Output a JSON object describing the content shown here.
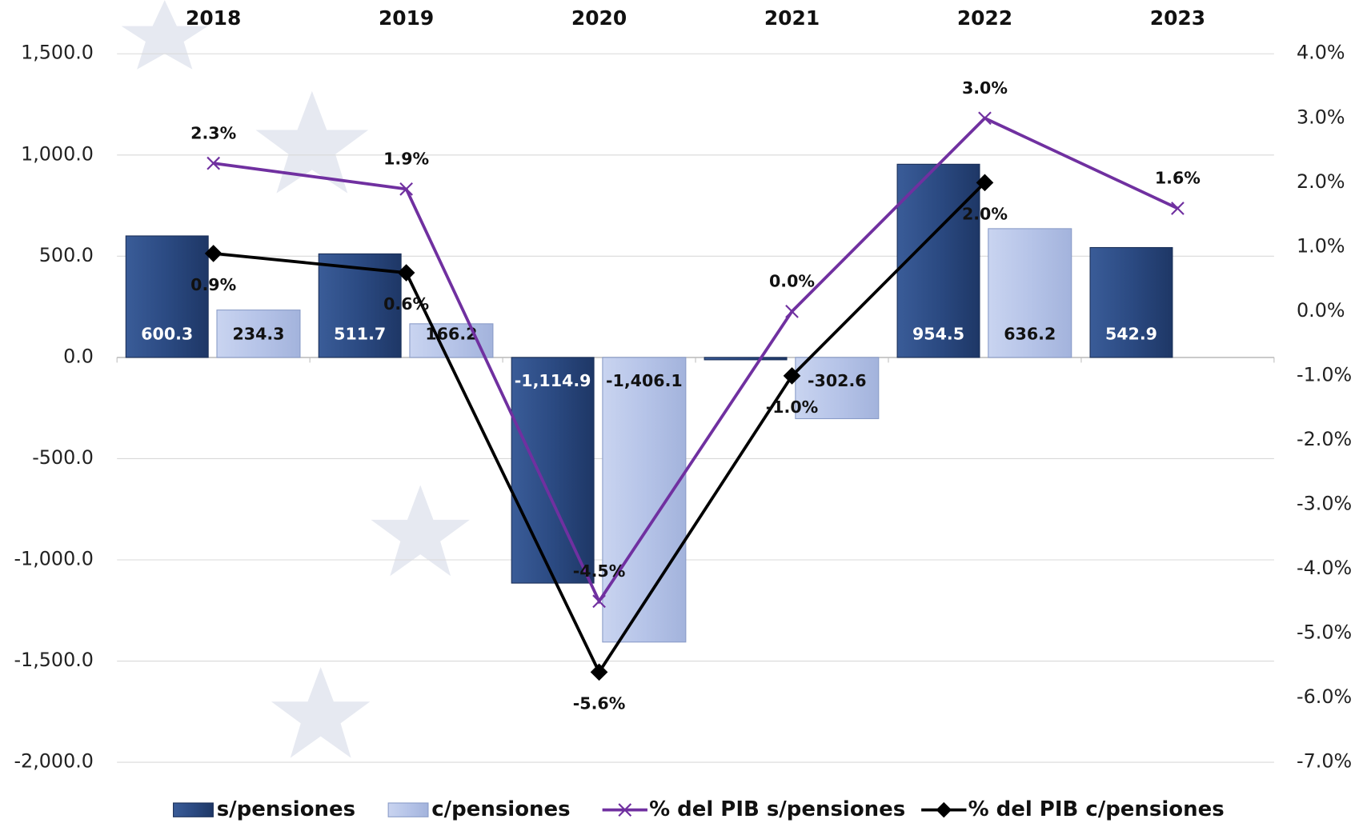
{
  "chart_data": {
    "type": "combo",
    "categories": [
      "2018",
      "2019",
      "2020",
      "2021",
      "2022",
      "2023"
    ],
    "ylim": [
      -2000,
      1500
    ],
    "yticks": [
      {
        "value": -2000,
        "label": "-2,000.0"
      },
      {
        "value": -1500,
        "label": "-1,500.0"
      },
      {
        "value": -1000,
        "label": "-1,000.0"
      },
      {
        "value": -500,
        "label": "-500.0"
      },
      {
        "value": 0,
        "label": "0.0"
      },
      {
        "value": 500,
        "label": "500.0"
      },
      {
        "value": 1000,
        "label": "1,000.0"
      },
      {
        "value": 1500,
        "label": "1,500.0"
      }
    ],
    "y2lim": [
      -7,
      4
    ],
    "y2ticks": [
      {
        "value": -7,
        "label": "-7.0%"
      },
      {
        "value": -6,
        "label": "-6.0%"
      },
      {
        "value": -5,
        "label": "-5.0%"
      },
      {
        "value": -4,
        "label": "-4.0%"
      },
      {
        "value": -3,
        "label": "-3.0%"
      },
      {
        "value": -2,
        "label": "-2.0%"
      },
      {
        "value": -1,
        "label": "-1.0%"
      },
      {
        "value": 0,
        "label": "0.0%"
      },
      {
        "value": 1,
        "label": "1.0%"
      },
      {
        "value": 2,
        "label": "2.0%"
      },
      {
        "value": 3,
        "label": "3.0%"
      },
      {
        "value": 4,
        "label": "4.0%"
      }
    ],
    "grid": true,
    "legend": "bottom",
    "series": [
      {
        "name": "s/pensiones",
        "type": "bar",
        "color": "#2b4a82",
        "values": [
          600.3,
          511.7,
          -1114.9,
          -11.8,
          954.5,
          542.9
        ],
        "value_labels": [
          "600.3",
          "511.7",
          "-1,114.9",
          "-11.8",
          "954.5",
          "542.9"
        ]
      },
      {
        "name": "c/pensiones",
        "type": "bar",
        "color": "#b6c4e8",
        "values": [
          234.3,
          166.2,
          -1406.1,
          -302.6,
          636.2,
          null
        ],
        "value_labels": [
          "234.3",
          "166.2",
          "-1,406.1",
          "-302.6",
          "636.2",
          null
        ]
      },
      {
        "name": "% del PIB s/pensiones",
        "type": "line",
        "axis": "y2",
        "color": "#7030a0",
        "marker": "x",
        "values": [
          2.3,
          1.9,
          -4.5,
          0.0,
          3.0,
          1.6
        ],
        "value_labels": [
          "2.3%",
          "1.9%",
          "-4.5%",
          "0.0%",
          "3.0%",
          "1.6%"
        ]
      },
      {
        "name": "% del PIB c/pensiones",
        "type": "line",
        "axis": "y2",
        "color": "#000000",
        "marker": "diamond",
        "values": [
          0.9,
          0.6,
          -5.6,
          -1.0,
          2.0,
          null
        ],
        "value_labels": [
          "0.9%",
          "0.6%",
          "-5.6%",
          "-1.0%",
          "2.0%",
          null
        ]
      }
    ]
  }
}
